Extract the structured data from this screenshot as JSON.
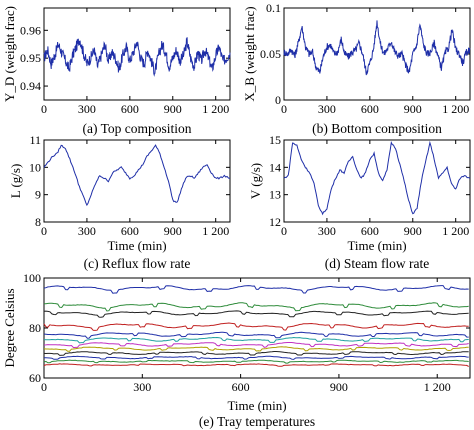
{
  "chart_data": [
    {
      "id": "a",
      "type": "line",
      "caption": "(a) Top composition",
      "ylabel": "Y_D (weight frac)",
      "xlabel": "",
      "xlim": [
        0,
        1300
      ],
      "ylim": [
        0.935,
        0.968
      ],
      "xticks": [
        "0",
        "300",
        "600",
        "900",
        "1 200"
      ],
      "yticks": [
        "0.94",
        "0.95",
        "0.96"
      ],
      "series": [
        {
          "color": "#1f2fa8",
          "x": [
            0,
            25,
            50,
            75,
            100,
            125,
            150,
            175,
            200,
            225,
            250,
            275,
            300,
            325,
            350,
            375,
            400,
            425,
            450,
            475,
            500,
            525,
            550,
            575,
            600,
            625,
            650,
            675,
            700,
            725,
            750,
            775,
            800,
            825,
            850,
            875,
            900,
            925,
            950,
            975,
            1000,
            1025,
            1050,
            1075,
            1100,
            1125,
            1150,
            1175,
            1200,
            1225,
            1250,
            1275,
            1300
          ],
          "values": [
            0.95,
            0.953,
            0.948,
            0.951,
            0.955,
            0.952,
            0.949,
            0.946,
            0.951,
            0.954,
            0.957,
            0.952,
            0.948,
            0.95,
            0.953,
            0.947,
            0.951,
            0.955,
            0.949,
            0.952,
            0.95,
            0.946,
            0.951,
            0.954,
            0.949,
            0.952,
            0.956,
            0.95,
            0.948,
            0.953,
            0.949,
            0.945,
            0.951,
            0.955,
            0.952,
            0.947,
            0.95,
            0.953,
            0.949,
            0.951,
            0.956,
            0.95,
            0.947,
            0.952,
            0.949,
            0.953,
            0.95,
            0.946,
            0.951,
            0.954,
            0.949,
            0.95,
            0.952
          ]
        }
      ]
    },
    {
      "id": "b",
      "type": "line",
      "caption": "(b) Bottom composition",
      "ylabel": "X_B (weight frac)",
      "xlabel": "",
      "xlim": [
        0,
        1300
      ],
      "ylim": [
        0,
        0.1
      ],
      "xticks": [
        "0",
        "300",
        "600",
        "900",
        "1 200"
      ],
      "yticks": [
        "0",
        "0.05",
        "0.1"
      ],
      "series": [
        {
          "color": "#1f2fa8",
          "x": [
            0,
            25,
            50,
            75,
            100,
            125,
            150,
            175,
            200,
            225,
            250,
            275,
            300,
            325,
            350,
            375,
            400,
            425,
            450,
            475,
            500,
            525,
            550,
            575,
            600,
            625,
            650,
            675,
            700,
            725,
            750,
            775,
            800,
            825,
            850,
            875,
            900,
            925,
            950,
            975,
            1000,
            1025,
            1050,
            1075,
            1100,
            1125,
            1150,
            1175,
            1200,
            1225,
            1250,
            1275,
            1300
          ],
          "values": [
            0.052,
            0.05,
            0.055,
            0.048,
            0.062,
            0.08,
            0.058,
            0.05,
            0.052,
            0.035,
            0.03,
            0.048,
            0.058,
            0.06,
            0.05,
            0.052,
            0.066,
            0.05,
            0.047,
            0.052,
            0.054,
            0.062,
            0.05,
            0.03,
            0.04,
            0.055,
            0.085,
            0.06,
            0.05,
            0.056,
            0.064,
            0.052,
            0.048,
            0.05,
            0.038,
            0.03,
            0.05,
            0.058,
            0.082,
            0.06,
            0.05,
            0.052,
            0.062,
            0.048,
            0.035,
            0.05,
            0.057,
            0.076,
            0.055,
            0.05,
            0.04,
            0.052,
            0.055
          ]
        }
      ]
    },
    {
      "id": "c",
      "type": "line",
      "caption": "(c) Reflux flow rate",
      "ylabel": "L (g/s)",
      "xlabel": "Time (min)",
      "xlim": [
        0,
        1300
      ],
      "ylim": [
        8,
        11
      ],
      "xticks": [
        "0",
        "300",
        "600",
        "900",
        "1 200"
      ],
      "yticks": [
        "8",
        "9",
        "10",
        "11"
      ],
      "series": [
        {
          "color": "#1f2fa8",
          "x": [
            0,
            30,
            60,
            90,
            120,
            150,
            180,
            210,
            240,
            270,
            300,
            330,
            360,
            390,
            420,
            450,
            480,
            510,
            540,
            570,
            600,
            630,
            660,
            690,
            720,
            750,
            780,
            810,
            840,
            870,
            900,
            930,
            960,
            990,
            1020,
            1050,
            1080,
            1110,
            1140,
            1170,
            1200,
            1230,
            1260,
            1300
          ],
          "values": [
            10.0,
            10.2,
            10.4,
            10.5,
            10.8,
            10.7,
            10.3,
            9.9,
            9.4,
            9.0,
            8.6,
            9.0,
            9.4,
            9.7,
            9.6,
            9.5,
            9.8,
            9.9,
            10.0,
            9.8,
            9.6,
            9.7,
            9.9,
            10.1,
            10.4,
            10.6,
            10.8,
            10.5,
            10.0,
            9.5,
            8.8,
            8.7,
            9.2,
            9.6,
            9.7,
            9.6,
            9.8,
            10.0,
            10.1,
            9.8,
            9.6,
            9.6,
            9.7,
            9.6
          ]
        }
      ]
    },
    {
      "id": "d",
      "type": "line",
      "caption": "(d) Steam flow rate",
      "ylabel": "V (g/s)",
      "xlabel": "Time (min)",
      "xlim": [
        0,
        1300
      ],
      "ylim": [
        12,
        15
      ],
      "xticks": [
        "0",
        "300",
        "600",
        "900",
        "1 200"
      ],
      "yticks": [
        "12",
        "13",
        "14",
        "15"
      ],
      "series": [
        {
          "color": "#1f2fa8",
          "x": [
            0,
            30,
            60,
            90,
            120,
            150,
            180,
            210,
            240,
            270,
            300,
            330,
            360,
            390,
            420,
            450,
            480,
            510,
            540,
            570,
            600,
            630,
            660,
            690,
            720,
            750,
            780,
            810,
            840,
            870,
            900,
            930,
            960,
            990,
            1020,
            1050,
            1080,
            1110,
            1140,
            1170,
            1200,
            1230,
            1260,
            1300
          ],
          "values": [
            13.6,
            13.7,
            14.9,
            14.8,
            14.3,
            14.0,
            13.8,
            13.4,
            12.6,
            12.3,
            12.5,
            13.2,
            13.6,
            13.9,
            13.8,
            14.2,
            14.4,
            13.9,
            13.6,
            13.8,
            14.3,
            14.5,
            13.8,
            13.5,
            13.9,
            14.9,
            14.7,
            14.1,
            13.5,
            12.8,
            12.3,
            12.5,
            13.5,
            14.2,
            14.9,
            14.3,
            13.6,
            13.8,
            14.0,
            13.4,
            13.2,
            13.6,
            13.7,
            13.6
          ]
        }
      ]
    },
    {
      "id": "e",
      "type": "line",
      "caption": "(e) Tray temperatures",
      "ylabel": "Degree Celsius",
      "xlabel": "Time (min)",
      "xlim": [
        0,
        1300
      ],
      "ylim": [
        60,
        100
      ],
      "xticks": [
        "0",
        "300",
        "600",
        "900",
        "1 200"
      ],
      "yticks": [
        "60",
        "80",
        "100"
      ],
      "series": [
        {
          "color": "#1f2fa8",
          "base": 96.0,
          "amp": 1.2
        },
        {
          "color": "#2e8b3a",
          "base": 89.0,
          "amp": 1.3
        },
        {
          "color": "#222222",
          "base": 86.0,
          "amp": 1.0
        },
        {
          "color": "#c02020",
          "base": 81.0,
          "amp": 1.2
        },
        {
          "color": "#1f2fa8",
          "base": 77.5,
          "amp": 1.0
        },
        {
          "color": "#20a0a0",
          "base": 75.5,
          "amp": 0.9
        },
        {
          "color": "#c030c0",
          "base": 73.5,
          "amp": 0.9
        },
        {
          "color": "#b0a000",
          "base": 71.8,
          "amp": 0.8
        },
        {
          "color": "#222222",
          "base": 70.0,
          "amp": 0.7
        },
        {
          "color": "#1f2fa8",
          "base": 68.2,
          "amp": 0.6
        },
        {
          "color": "#2e8b3a",
          "base": 66.7,
          "amp": 0.5
        },
        {
          "color": "#c02020",
          "base": 65.3,
          "amp": 0.4
        }
      ]
    }
  ]
}
